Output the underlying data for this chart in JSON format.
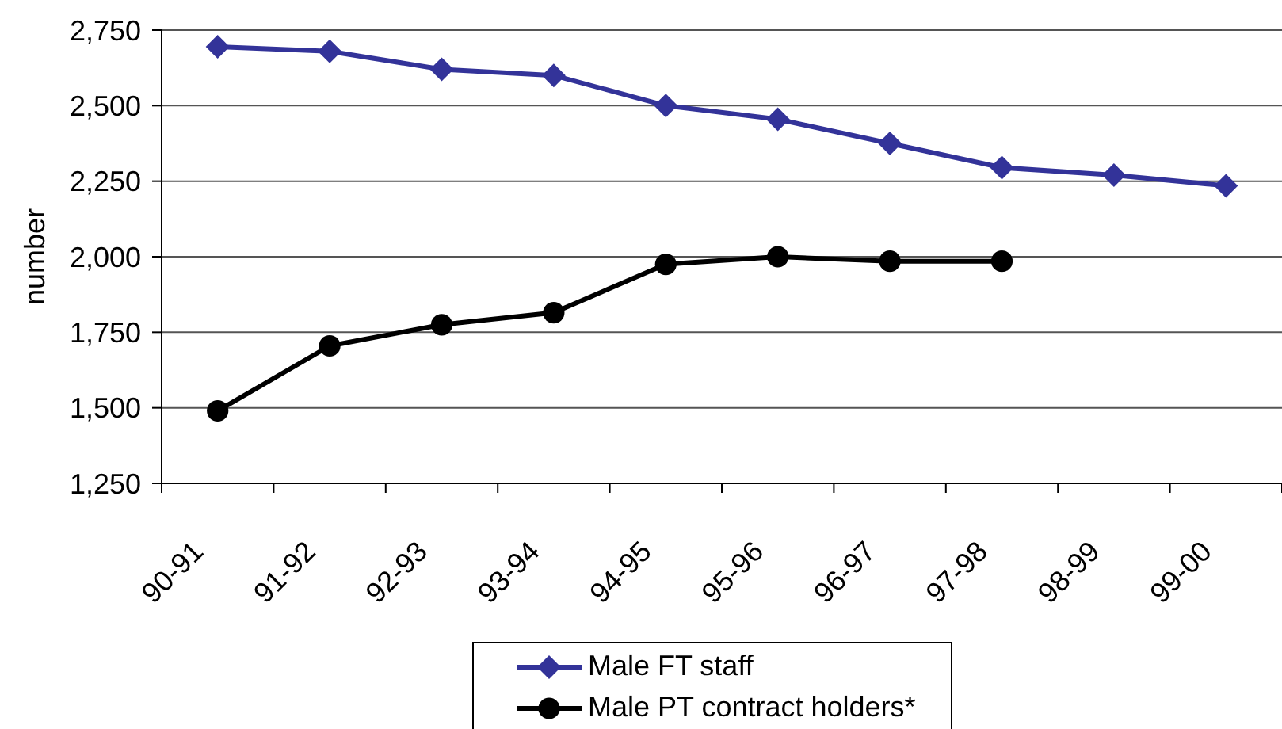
{
  "chart_data": {
    "type": "line",
    "ylabel": "number",
    "categories": [
      "90-91",
      "91-92",
      "92-93",
      "93-94",
      "94-95",
      "95-96",
      "96-97",
      "97-98",
      "98-99",
      "99-00"
    ],
    "series": [
      {
        "name": "Male FT staff",
        "color": "#333399",
        "marker": "diamond",
        "values": [
          2695,
          2680,
          2620,
          2600,
          2500,
          2455,
          2375,
          2295,
          2270,
          2235
        ]
      },
      {
        "name": "Male PT contract holders*",
        "color": "#000000",
        "marker": "circle",
        "values": [
          1490,
          1705,
          1775,
          1815,
          1975,
          2000,
          1985,
          1985,
          null,
          null
        ]
      }
    ],
    "ylim": [
      1250,
      2750
    ],
    "yticks": [
      {
        "value": 1250,
        "label": "1,250"
      },
      {
        "value": 1500,
        "label": "1,500"
      },
      {
        "value": 1750,
        "label": "1,750"
      },
      {
        "value": 2000,
        "label": "2,000"
      },
      {
        "value": 2250,
        "label": "2,250"
      },
      {
        "value": 2500,
        "label": "2,500"
      },
      {
        "value": 2750,
        "label": "2,750"
      }
    ],
    "grid": "y",
    "legend": "bottom"
  }
}
